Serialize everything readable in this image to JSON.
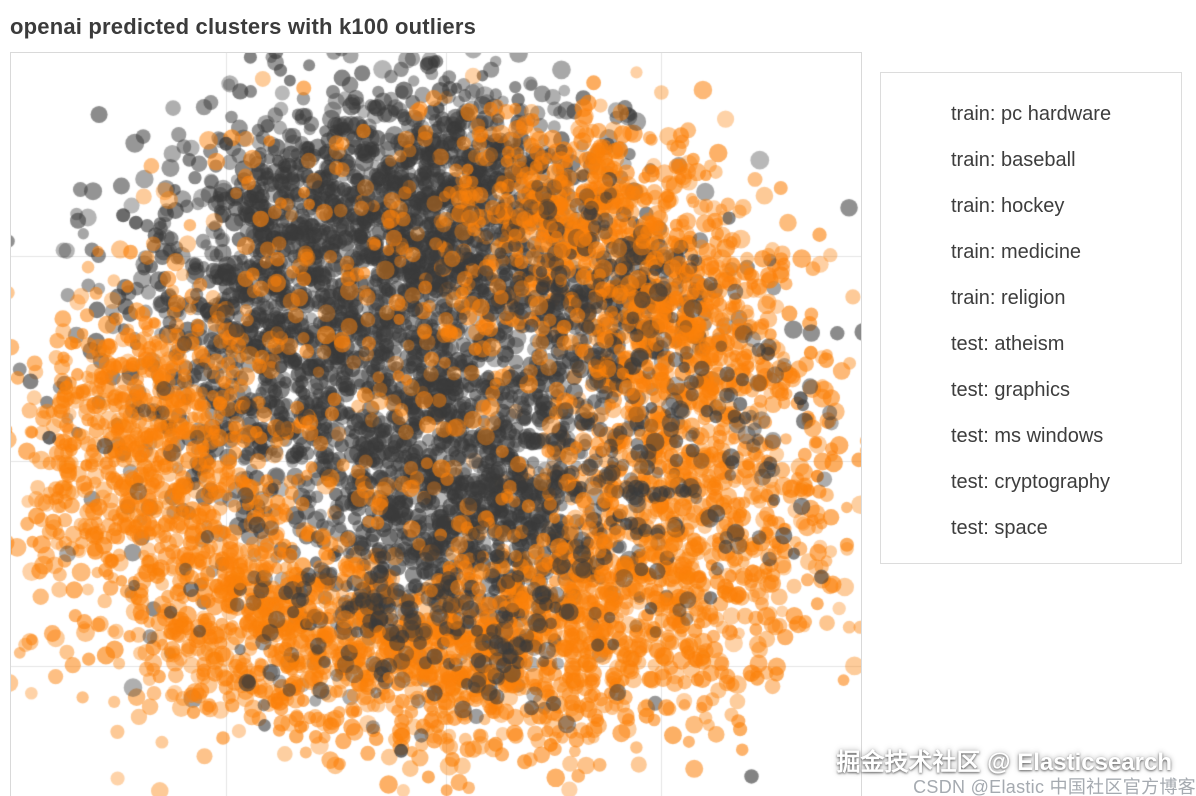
{
  "watermarks": {
    "juejin": "掘金技术社区 @ Elasticsearch",
    "csdn": "CSDN @Elastic 中国社区官方博客"
  },
  "chart_data": {
    "type": "scatter",
    "title": "openai predicted clusters with k100 outliers",
    "xlabel": "",
    "ylabel": "",
    "axes": {
      "ticks_visible": false,
      "grid": true,
      "border_color": "#d9d9d9",
      "grid_color": "#e4e4e4"
    },
    "legend_position": "right",
    "series_labels": [
      "train: pc hardware",
      "train: baseball",
      "train: hockey",
      "train: medicine",
      "train: religion",
      "test: atheism",
      "test: graphics",
      "test: ms windows",
      "test: cryptography",
      "test: space"
    ],
    "colors": {
      "dark": "#3a3a3a",
      "orange": "#fb810a"
    },
    "point_style": {
      "radius_px": 7,
      "alpha": 0.5
    },
    "grid_lines": {
      "vertical_fractions": [
        0.253,
        0.512,
        0.765
      ],
      "horizontal_fractions": [
        0.273,
        0.548,
        0.824
      ]
    },
    "clusters": [
      {
        "color": "dark",
        "cx": 0.429,
        "cy": 0.212,
        "sx": 0.112,
        "sy": 0.094,
        "n": 850
      },
      {
        "color": "dark",
        "cx": 0.553,
        "cy": 0.185,
        "sx": 0.082,
        "sy": 0.074,
        "n": 400
      },
      {
        "color": "orange",
        "cx": 0.676,
        "cy": 0.219,
        "sx": 0.082,
        "sy": 0.074,
        "n": 500
      },
      {
        "color": "dark",
        "cx": 0.706,
        "cy": 0.333,
        "sx": 0.071,
        "sy": 0.067,
        "n": 280
      },
      {
        "color": "orange",
        "cx": 0.806,
        "cy": 0.374,
        "sx": 0.076,
        "sy": 0.074,
        "n": 420
      },
      {
        "color": "orange",
        "cx": 0.8,
        "cy": 0.629,
        "sx": 0.1,
        "sy": 0.101,
        "n": 700
      },
      {
        "color": "dark",
        "cx": 0.424,
        "cy": 0.454,
        "sx": 0.141,
        "sy": 0.128,
        "n": 1100
      },
      {
        "color": "dark",
        "cx": 0.282,
        "cy": 0.333,
        "sx": 0.094,
        "sy": 0.094,
        "n": 350
      },
      {
        "color": "dark",
        "cx": 0.553,
        "cy": 0.609,
        "sx": 0.1,
        "sy": 0.094,
        "n": 700
      },
      {
        "color": "orange",
        "cx": 0.165,
        "cy": 0.589,
        "sx": 0.082,
        "sy": 0.101,
        "n": 550
      },
      {
        "color": "orange",
        "cx": 0.153,
        "cy": 0.441,
        "sx": 0.065,
        "sy": 0.067,
        "n": 200
      },
      {
        "color": "orange",
        "cx": 0.294,
        "cy": 0.77,
        "sx": 0.088,
        "sy": 0.074,
        "n": 450
      },
      {
        "color": "orange",
        "cx": 0.494,
        "cy": 0.824,
        "sx": 0.094,
        "sy": 0.067,
        "n": 450
      },
      {
        "color": "orange",
        "cx": 0.665,
        "cy": 0.784,
        "sx": 0.094,
        "sy": 0.074,
        "n": 500
      },
      {
        "color": "dark",
        "cx": 0.494,
        "cy": 0.737,
        "sx": 0.106,
        "sy": 0.067,
        "n": 250
      },
      {
        "color": "orange",
        "cx": 0.429,
        "cy": 0.266,
        "sx": 0.129,
        "sy": 0.121,
        "n": 150
      },
      {
        "color": "dark",
        "cx": 0.8,
        "cy": 0.508,
        "sx": 0.106,
        "sy": 0.121,
        "n": 120
      },
      {
        "color": "orange",
        "cx": 0.494,
        "cy": 0.508,
        "sx": 0.165,
        "sy": 0.161,
        "n": 200
      },
      {
        "color": "dark",
        "cx": 0.482,
        "cy": 0.511,
        "sx": 0.235,
        "sy": 0.228,
        "n": 120
      },
      {
        "color": "orange",
        "cx": 0.494,
        "cy": 0.538,
        "sx": 0.247,
        "sy": 0.242,
        "n": 120
      }
    ],
    "outlier_points": [
      {
        "color": "dark",
        "x": 0.253,
        "y": 0.122
      },
      {
        "color": "dark",
        "x": 0.132,
        "y": 0.218
      },
      {
        "color": "dark",
        "x": 0.147,
        "y": 0.228
      },
      {
        "color": "orange",
        "x": 0.071,
        "y": 0.39
      },
      {
        "color": "orange",
        "x": 0.065,
        "y": 0.45
      },
      {
        "color": "dark",
        "x": 0.045,
        "y": 0.517
      },
      {
        "color": "orange",
        "x": 0.941,
        "y": 0.403
      },
      {
        "color": "dark",
        "x": 0.929,
        "y": 0.464
      },
      {
        "color": "dark",
        "x": 0.459,
        "y": 0.938
      },
      {
        "color": "orange",
        "x": 0.635,
        "y": 0.93
      }
    ]
  }
}
